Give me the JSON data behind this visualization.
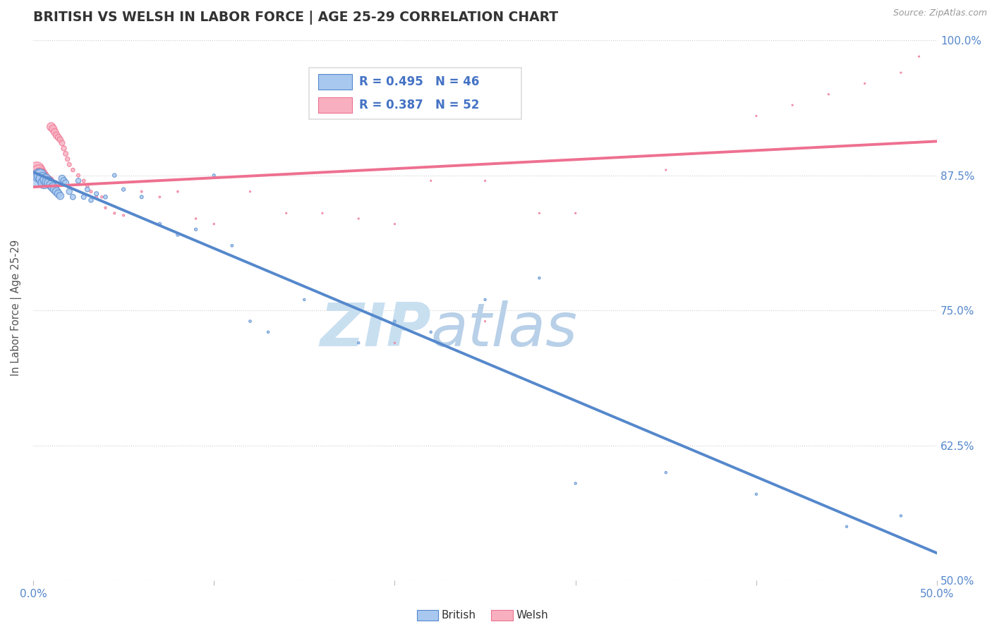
{
  "title": "BRITISH VS WELSH IN LABOR FORCE | AGE 25-29 CORRELATION CHART",
  "source": "Source: ZipAtlas.com",
  "ylabel": "In Labor Force | Age 25-29",
  "xlim": [
    0.0,
    0.5
  ],
  "ylim": [
    0.5,
    1.005
  ],
  "ytick_positions": [
    0.5,
    0.625,
    0.75,
    0.875,
    1.0
  ],
  "ytick_labels_right": [
    "50.0%",
    "62.5%",
    "75.0%",
    "87.5%",
    "100.0%"
  ],
  "british_R": 0.495,
  "british_N": 46,
  "welsh_R": 0.387,
  "welsh_N": 52,
  "british_color": "#A8C8F0",
  "welsh_color": "#F8B0C0",
  "british_line_color": "#5588CC",
  "welsh_line_color": "#EE7090",
  "watermark_zip": "ZIP",
  "watermark_atlas": "atlas",
  "watermark_color_zip": "#C8DFF0",
  "watermark_color_atlas": "#B8D0E8",
  "british_x": [
    0.002,
    0.003,
    0.004,
    0.005,
    0.006,
    0.007,
    0.008,
    0.009,
    0.01,
    0.011,
    0.012,
    0.013,
    0.014,
    0.015,
    0.016,
    0.017,
    0.018,
    0.02,
    0.022,
    0.025,
    0.028,
    0.03,
    0.032,
    0.035,
    0.04,
    0.045,
    0.05,
    0.06,
    0.07,
    0.08,
    0.09,
    0.1,
    0.11,
    0.12,
    0.13,
    0.15,
    0.18,
    0.2,
    0.22,
    0.25,
    0.28,
    0.3,
    0.35,
    0.4,
    0.45,
    0.48
  ],
  "british_y": [
    0.87,
    0.875,
    0.875,
    0.872,
    0.868,
    0.871,
    0.869,
    0.868,
    0.866,
    0.864,
    0.862,
    0.86,
    0.858,
    0.856,
    0.872,
    0.87,
    0.868,
    0.86,
    0.855,
    0.87,
    0.855,
    0.862,
    0.852,
    0.858,
    0.855,
    0.875,
    0.862,
    0.855,
    0.83,
    0.82,
    0.825,
    0.875,
    0.81,
    0.74,
    0.73,
    0.76,
    0.72,
    0.74,
    0.73,
    0.76,
    0.78,
    0.59,
    0.6,
    0.58,
    0.55,
    0.56
  ],
  "british_sizes": [
    350,
    320,
    300,
    280,
    260,
    240,
    220,
    200,
    180,
    160,
    145,
    130,
    115,
    100,
    90,
    82,
    75,
    65,
    55,
    50,
    45,
    42,
    38,
    35,
    30,
    28,
    25,
    22,
    20,
    18,
    16,
    15,
    13,
    12,
    11,
    10,
    10,
    10,
    10,
    10,
    10,
    10,
    10,
    10,
    10,
    10
  ],
  "welsh_x": [
    0.002,
    0.003,
    0.004,
    0.005,
    0.006,
    0.007,
    0.008,
    0.009,
    0.01,
    0.011,
    0.012,
    0.013,
    0.014,
    0.015,
    0.016,
    0.017,
    0.018,
    0.019,
    0.02,
    0.022,
    0.025,
    0.028,
    0.03,
    0.032,
    0.035,
    0.038,
    0.04,
    0.045,
    0.05,
    0.06,
    0.07,
    0.08,
    0.09,
    0.1,
    0.12,
    0.14,
    0.16,
    0.18,
    0.2,
    0.22,
    0.25,
    0.28,
    0.3,
    0.35,
    0.4,
    0.42,
    0.44,
    0.46,
    0.48,
    0.49,
    0.2,
    0.25
  ],
  "welsh_y": [
    0.88,
    0.878,
    0.876,
    0.875,
    0.873,
    0.871,
    0.87,
    0.87,
    0.92,
    0.918,
    0.915,
    0.912,
    0.91,
    0.908,
    0.905,
    0.9,
    0.895,
    0.89,
    0.885,
    0.88,
    0.875,
    0.87,
    0.865,
    0.86,
    0.855,
    0.855,
    0.845,
    0.84,
    0.838,
    0.86,
    0.855,
    0.86,
    0.835,
    0.83,
    0.86,
    0.84,
    0.84,
    0.835,
    0.83,
    0.87,
    0.87,
    0.84,
    0.84,
    0.88,
    0.93,
    0.94,
    0.95,
    0.96,
    0.97,
    0.985,
    0.72,
    0.74
  ],
  "welsh_sizes": [
    1200,
    1000,
    800,
    700,
    600,
    500,
    430,
    380,
    330,
    290,
    250,
    220,
    190,
    165,
    145,
    125,
    110,
    95,
    82,
    70,
    58,
    50,
    43,
    38,
    33,
    28,
    25,
    22,
    20,
    18,
    16,
    15,
    13,
    12,
    10,
    10,
    10,
    10,
    10,
    10,
    10,
    10,
    10,
    10,
    10,
    10,
    10,
    10,
    10,
    10,
    10,
    10
  ]
}
